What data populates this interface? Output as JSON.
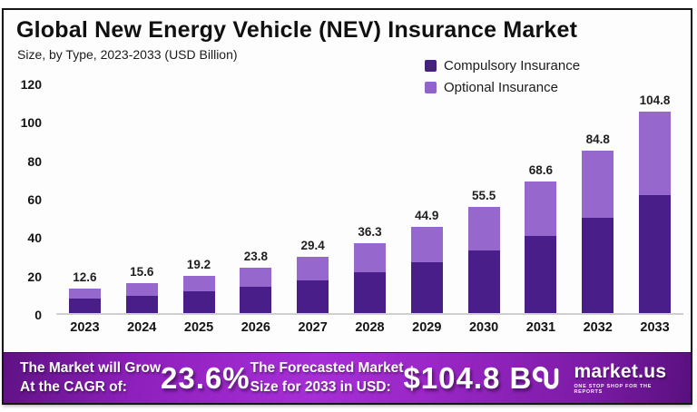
{
  "header": {
    "title": "Global New Energy Vehicle (NEV) Insurance Market",
    "subtitle": "Size, by Type, 2023-2033 (USD Billion)"
  },
  "legend": {
    "items": [
      {
        "label": "Compulsory Insurance",
        "color": "#45217c"
      },
      {
        "label": "Optional Insurance",
        "color": "#9164cb"
      }
    ]
  },
  "chart_data": {
    "type": "bar",
    "stacked": true,
    "title": "Global New Energy Vehicle (NEV) Insurance Market",
    "subtitle": "Size, by Type, 2023-2033 (USD Billion)",
    "xlabel": "",
    "ylabel": "USD Billion",
    "ylim": [
      0,
      120
    ],
    "yticks": [
      0,
      20,
      40,
      60,
      80,
      100,
      120
    ],
    "grid": false,
    "legend_position": "top-right",
    "categories": [
      "2023",
      "2024",
      "2025",
      "2026",
      "2027",
      "2028",
      "2029",
      "2030",
      "2031",
      "2032",
      "2033"
    ],
    "series": [
      {
        "name": "Compulsory Insurance",
        "color": "#4a1e88",
        "values": [
          7.4,
          9.1,
          11.2,
          13.9,
          17.2,
          21.2,
          26.3,
          32.5,
          40.1,
          49.6,
          61.3
        ]
      },
      {
        "name": "Optional Insurance",
        "color": "#9667cd",
        "values": [
          5.2,
          6.5,
          8.0,
          9.9,
          12.2,
          15.1,
          18.6,
          23.0,
          28.5,
          35.2,
          43.5
        ]
      }
    ],
    "totals": [
      12.6,
      15.6,
      19.2,
      23.8,
      29.4,
      36.3,
      44.9,
      55.5,
      68.6,
      84.8,
      104.8
    ]
  },
  "banner": {
    "left_line1": "The Market will Grow",
    "left_line2": "At the CAGR of:",
    "cagr_value": "23.6%",
    "mid_line1": "The Forecasted Market",
    "mid_line2": "Size for 2033 in USD:",
    "forecast_value": "$104.8 B",
    "brand_name": "market.us",
    "brand_tagline": "ONE STOP SHOP FOR THE REPORTS",
    "background": "#9a27c6"
  }
}
